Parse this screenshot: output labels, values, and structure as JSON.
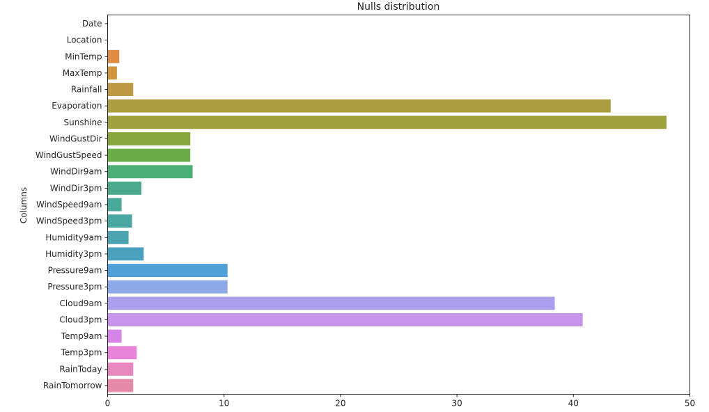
{
  "chart_data": {
    "type": "bar",
    "orientation": "horizontal",
    "title": "Nulls distribution",
    "ylabel": "Columns",
    "xlim": [
      0,
      50
    ],
    "xticks": [
      0,
      10,
      20,
      30,
      40,
      50
    ],
    "grid": false,
    "legend": "none",
    "categories": [
      "Date",
      "Location",
      "MinTemp",
      "MaxTemp",
      "Rainfall",
      "Evaporation",
      "Sunshine",
      "WindGustDir",
      "WindGustSpeed",
      "WindDir9am",
      "WindDir3pm",
      "WindSpeed9am",
      "WindSpeed3pm",
      "Humidity9am",
      "Humidity3pm",
      "Pressure9am",
      "Pressure3pm",
      "Cloud9am",
      "Cloud3pm",
      "Temp9am",
      "Temp3pm",
      "RainToday",
      "RainTomorrow"
    ],
    "values": [
      0.0,
      0.0,
      1.0,
      0.8,
      2.2,
      43.2,
      48.0,
      7.1,
      7.1,
      7.3,
      2.9,
      1.2,
      2.1,
      1.8,
      3.1,
      10.3,
      10.3,
      38.4,
      40.8,
      1.2,
      2.5,
      2.2,
      2.2
    ],
    "colors": [
      "#e8817c",
      "#e48a5e",
      "#df8c43",
      "#cf9541",
      "#bd9a41",
      "#ad9d42",
      "#9ea13c",
      "#86a53e",
      "#68ad45",
      "#49ad74",
      "#4aa98a",
      "#48a89a",
      "#49a6a3",
      "#4aa3af",
      "#4ba1bd",
      "#4fa0d8",
      "#8ea9e8",
      "#ab9eec",
      "#c695ea",
      "#d685e6",
      "#e884d7",
      "#e887bd",
      "#e68aaa"
    ]
  }
}
